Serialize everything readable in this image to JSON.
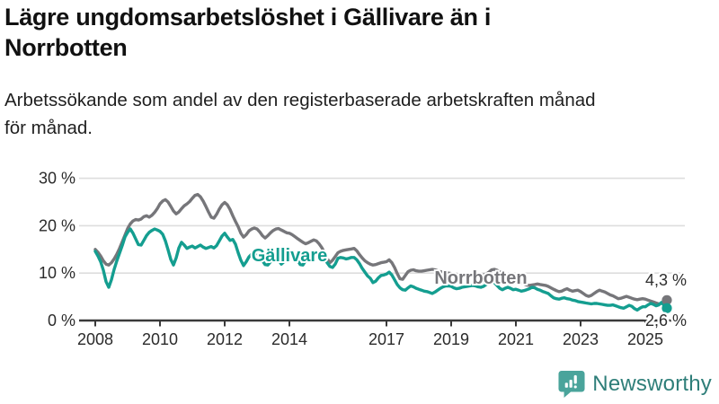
{
  "title": "Lägre ungdomsarbetslöshet i Gällivare än i Norrbotten",
  "title_lines": [
    "Lägre ungdomsarbetslöshet i Gällivare än i",
    "Norrbotten"
  ],
  "subtitle": "Arbetssökande som andel av den registerbaserade arbetskraften månad för månad.",
  "subtitle_lines": [
    "Arbetssökande som andel av den registerbaserade arbetskraften månad",
    "för månad."
  ],
  "branding": {
    "logo_text": "Newsworthy",
    "logo_icon": "bar-chart-speech-bubble-icon",
    "icon_color": "#4aa49b",
    "text_color": "#2e7e79"
  },
  "colors": {
    "gallivare_line": "#149e90",
    "norrbotten_line": "#76767a",
    "gridline": "#dddddd",
    "axis": "#3a3a3a",
    "tick_label": "#2b2b2b",
    "value_label": "#2e2e2e",
    "title": "#111111"
  },
  "chart_data": {
    "type": "line",
    "title": "Lägre ungdomsarbetslöshet i Gällivare än i Norrbotten",
    "subtitle": "Arbetssökande som andel av den registerbaserade arbetskraften månad för månad.",
    "unit": "%",
    "frequency": "monthly",
    "x_range": [
      "2008-01",
      "2025-09"
    ],
    "ylim": [
      0,
      31
    ],
    "grid": true,
    "legend": "inline-labels",
    "y_ticks": [
      {
        "value": 0,
        "label": "0 %"
      },
      {
        "value": 10,
        "label": "10 %"
      },
      {
        "value": 20,
        "label": "20 %"
      },
      {
        "value": 30,
        "label": "30 %"
      }
    ],
    "x_ticks": [
      {
        "year": 2008,
        "label": "2008"
      },
      {
        "year": 2010,
        "label": "2010"
      },
      {
        "year": 2012,
        "label": "2012"
      },
      {
        "year": 2014,
        "label": "2014"
      },
      {
        "year": 2017,
        "label": "2017"
      },
      {
        "year": 2019,
        "label": "2019"
      },
      {
        "year": 2021,
        "label": "2021"
      },
      {
        "year": 2023,
        "label": "2023"
      },
      {
        "year": 2025,
        "label": "2025"
      }
    ],
    "series": [
      {
        "name": "Norrbotten",
        "color": "#76767a",
        "end_value": 4.3,
        "end_label": "4,3 %",
        "values": [
          15.0,
          14.4,
          13.6,
          12.6,
          11.9,
          11.7,
          12.2,
          13.0,
          14.0,
          15.2,
          16.6,
          18.0,
          19.4,
          20.4,
          21.0,
          21.3,
          21.2,
          21.4,
          21.9,
          22.1,
          21.8,
          22.2,
          22.8,
          23.6,
          24.6,
          25.2,
          25.5,
          25.0,
          24.1,
          23.1,
          22.5,
          22.9,
          23.6,
          24.2,
          24.6,
          25.1,
          25.8,
          26.4,
          26.6,
          26.1,
          25.2,
          24.1,
          22.9,
          21.8,
          21.6,
          22.4,
          23.5,
          24.4,
          24.9,
          24.4,
          23.4,
          22.1,
          20.9,
          19.8,
          18.4,
          17.6,
          18.1,
          18.9,
          19.3,
          19.5,
          19.3,
          18.7,
          17.9,
          17.4,
          17.9,
          18.5,
          19.0,
          19.3,
          19.4,
          19.1,
          18.8,
          18.5,
          18.4,
          18.1,
          17.7,
          17.3,
          16.9,
          16.5,
          16.2,
          16.4,
          16.7,
          17.0,
          16.8,
          16.2,
          15.4,
          14.3,
          13.1,
          12.2,
          12.7,
          13.5,
          14.3,
          14.6,
          14.8,
          14.9,
          15.0,
          15.1,
          15.2,
          14.7,
          13.9,
          13.2,
          12.6,
          12.2,
          11.9,
          11.7,
          11.8,
          12.0,
          12.2,
          12.3,
          12.4,
          12.8,
          12.2,
          11.2,
          9.9,
          8.8,
          8.7,
          9.5,
          10.3,
          10.6,
          10.7,
          10.5,
          10.4,
          10.4,
          10.5,
          10.6,
          10.7,
          10.8,
          10.7,
          10.5,
          10.3,
          10.2,
          10.1,
          10.0,
          9.9,
          9.8,
          9.7,
          9.6,
          9.5,
          9.5,
          9.6,
          9.7,
          9.7,
          9.6,
          9.5,
          9.5,
          9.6,
          9.8,
          10.2,
          10.7,
          10.8,
          10.6,
          10.3,
          10.0,
          9.7,
          9.4,
          9.1,
          8.8,
          8.5,
          8.2,
          7.9,
          7.7,
          7.5,
          7.4,
          7.5,
          7.6,
          7.7,
          7.6,
          7.5,
          7.4,
          7.2,
          6.9,
          6.6,
          6.3,
          6.1,
          6.2,
          6.5,
          6.7,
          6.4,
          6.2,
          6.3,
          6.4,
          6.1,
          5.7,
          5.3,
          5.1,
          5.3,
          5.7,
          6.1,
          6.4,
          6.2,
          6.0,
          5.7,
          5.4,
          5.2,
          4.9,
          4.6,
          4.7,
          4.9,
          5.1,
          4.9,
          4.7,
          4.5,
          4.4,
          4.5,
          4.6,
          4.5,
          4.3,
          4.1,
          3.9,
          3.7,
          3.5,
          3.6,
          3.9,
          4.3
        ]
      },
      {
        "name": "Gällivare",
        "color": "#149e90",
        "end_value": 2.6,
        "end_label": "2,6 %",
        "values": [
          14.6,
          13.6,
          12.4,
          10.6,
          8.2,
          7.0,
          8.6,
          10.8,
          12.6,
          14.2,
          15.8,
          17.6,
          18.6,
          19.3,
          18.4,
          17.2,
          16.0,
          15.9,
          16.9,
          17.9,
          18.6,
          19.0,
          19.3,
          19.1,
          18.8,
          18.2,
          16.8,
          14.9,
          12.9,
          11.7,
          13.2,
          15.3,
          16.5,
          15.9,
          15.2,
          15.5,
          15.7,
          15.3,
          15.6,
          15.9,
          15.5,
          15.2,
          15.4,
          15.6,
          15.3,
          15.8,
          16.8,
          17.8,
          18.4,
          17.6,
          16.9,
          17.1,
          16.1,
          14.3,
          12.7,
          11.6,
          12.4,
          13.4,
          14.0,
          14.4,
          14.2,
          13.6,
          12.6,
          11.8,
          11.7,
          12.4,
          13.2,
          13.6,
          12.8,
          11.9,
          12.4,
          13.4,
          14.0,
          14.4,
          13.8,
          12.8,
          11.8,
          11.7,
          12.6,
          13.6,
          14.2,
          14.6,
          14.3,
          13.8,
          13.6,
          13.0,
          12.2,
          11.4,
          11.2,
          11.9,
          13.1,
          13.3,
          13.2,
          13.0,
          13.1,
          13.3,
          13.3,
          12.8,
          12.0,
          11.0,
          10.2,
          9.4,
          8.9,
          8.0,
          8.3,
          9.0,
          9.5,
          9.6,
          9.8,
          10.2,
          9.6,
          8.6,
          7.6,
          6.9,
          6.5,
          6.4,
          6.9,
          7.3,
          7.1,
          6.8,
          6.6,
          6.4,
          6.2,
          6.1,
          5.9,
          5.7,
          6.0,
          6.4,
          6.8,
          7.1,
          7.3,
          7.3,
          7.2,
          6.9,
          6.7,
          6.8,
          7.0,
          7.1,
          7.2,
          7.3,
          7.4,
          7.3,
          7.1,
          7.0,
          7.2,
          7.6,
          8.0,
          8.3,
          8.0,
          7.4,
          6.8,
          6.5,
          6.8,
          7.0,
          6.8,
          6.5,
          6.6,
          6.4,
          6.2,
          6.3,
          6.5,
          6.7,
          7.0,
          6.9,
          6.6,
          6.4,
          6.1,
          5.9,
          5.7,
          5.2,
          4.8,
          4.6,
          4.5,
          4.7,
          4.8,
          4.6,
          4.5,
          4.3,
          4.2,
          4.0,
          3.9,
          3.8,
          3.7,
          3.6,
          3.5,
          3.6,
          3.6,
          3.5,
          3.4,
          3.3,
          3.2,
          3.2,
          3.3,
          3.1,
          2.9,
          2.7,
          2.6,
          2.9,
          3.2,
          3.0,
          2.5,
          2.2,
          2.6,
          2.9,
          2.9,
          3.3,
          3.6,
          3.4,
          3.1,
          3.3,
          3.8,
          3.2,
          2.6
        ]
      }
    ]
  }
}
